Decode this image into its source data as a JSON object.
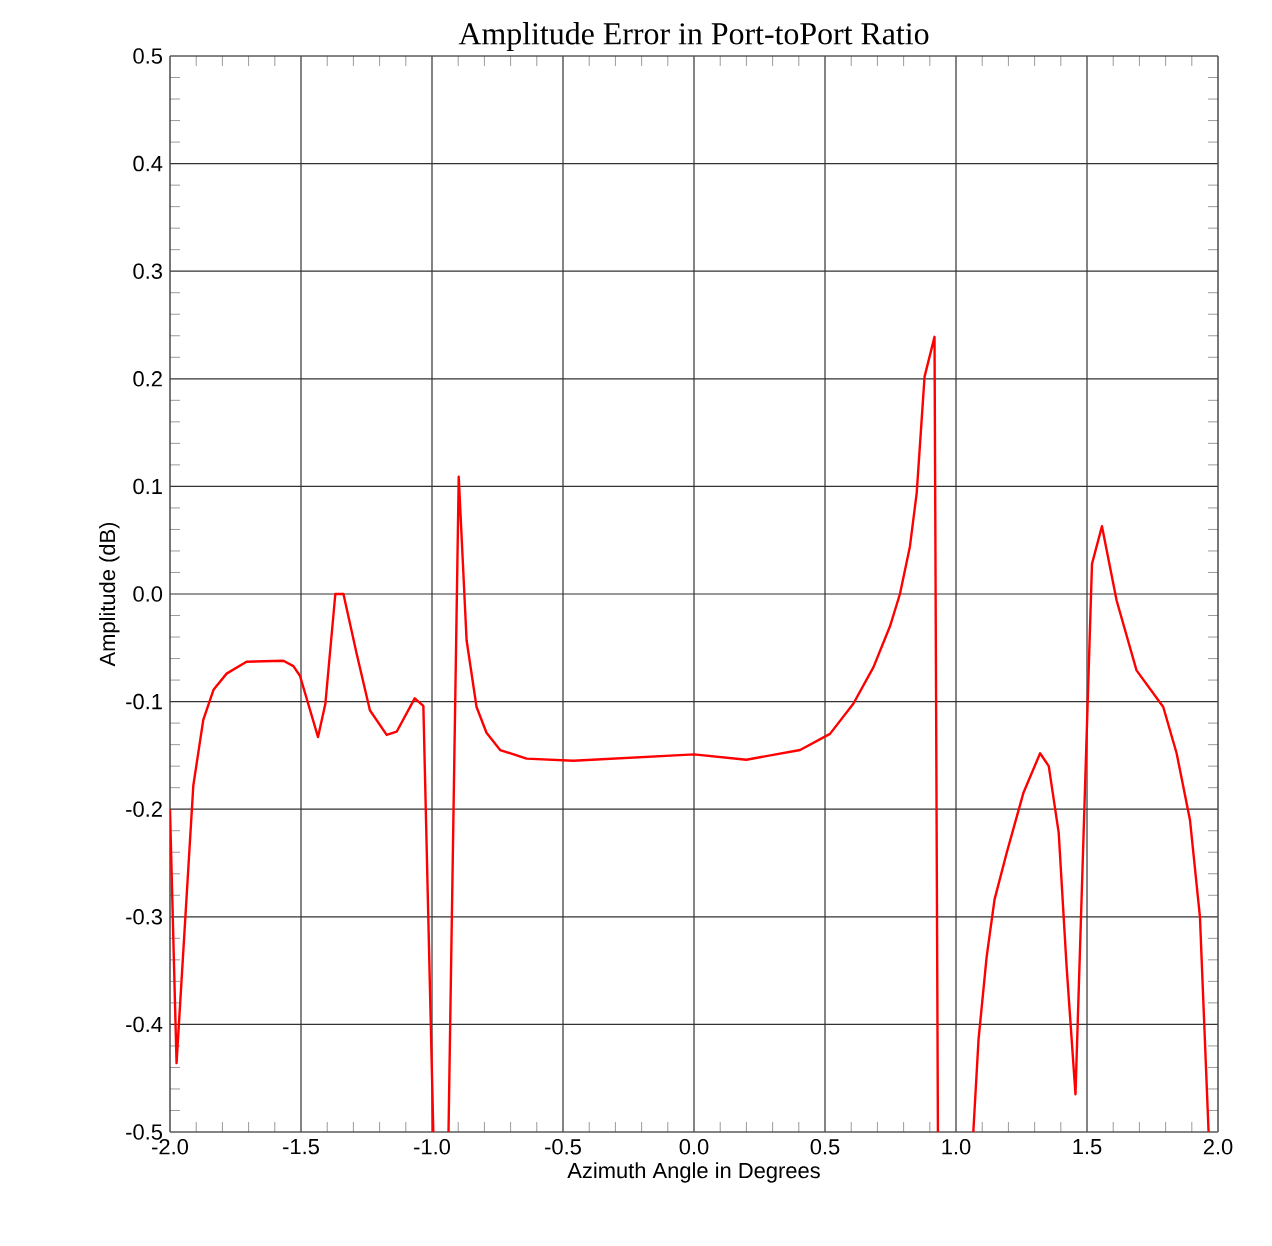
{
  "chart_data": {
    "type": "line",
    "title": "Amplitude Error in Port-toPort Ratio",
    "xlabel": "Azimuth Angle in Degrees",
    "ylabel": "Amplitude (dB)",
    "x": [
      -2.0,
      -1.975,
      -1.911,
      -1.873,
      -1.834,
      -1.784,
      -1.708,
      -1.567,
      -1.529,
      -1.504,
      -1.435,
      -1.407,
      -1.369,
      -1.338,
      -1.288,
      -1.237,
      -1.173,
      -1.135,
      -1.066,
      -1.033,
      -0.995,
      -0.97,
      -0.937,
      -0.898,
      -0.868,
      -0.83,
      -0.792,
      -0.74,
      -0.639,
      -0.461,
      0.0,
      0.2,
      0.405,
      0.519,
      0.608,
      0.685,
      0.748,
      0.786,
      0.824,
      0.85,
      0.88,
      0.918,
      0.931,
      1.0,
      1.066,
      1.086,
      1.117,
      1.147,
      1.193,
      1.257,
      1.321,
      1.354,
      1.392,
      1.422,
      1.456,
      1.519,
      1.557,
      1.613,
      1.689,
      1.791,
      1.842,
      1.893,
      1.931,
      1.964
    ],
    "series": [
      {
        "color": "#ff0000",
        "values": [
          -0.2,
          -0.436,
          -0.178,
          -0.117,
          -0.089,
          -0.074,
          -0.063,
          -0.062,
          -0.067,
          -0.076,
          -0.133,
          -0.102,
          0.0,
          0.0,
          -0.055,
          -0.108,
          -0.131,
          -0.128,
          -0.097,
          -0.104,
          -0.5,
          null,
          -0.5,
          0.109,
          -0.043,
          -0.105,
          -0.129,
          -0.145,
          -0.153,
          -0.155,
          -0.149,
          -0.154,
          -0.145,
          -0.13,
          -0.102,
          -0.068,
          -0.03,
          0.0,
          0.044,
          0.094,
          0.202,
          0.239,
          -0.5,
          null,
          -0.5,
          -0.414,
          -0.337,
          -0.284,
          -0.241,
          -0.185,
          -0.148,
          -0.16,
          -0.222,
          -0.346,
          -0.465,
          0.028,
          0.063,
          -0.006,
          -0.071,
          -0.105,
          -0.148,
          -0.21,
          -0.3,
          -0.5
        ]
      }
    ],
    "xlim": [
      -2.0,
      2.0
    ],
    "ylim": [
      -0.5,
      0.5
    ],
    "xticks": [
      {
        "value": -2.0,
        "label": "-2.0"
      },
      {
        "value": -1.5,
        "label": "-1.5"
      },
      {
        "value": -1.0,
        "label": "-1.0"
      },
      {
        "value": -0.5,
        "label": "-0.5"
      },
      {
        "value": 0.0,
        "label": "0.0"
      },
      {
        "value": 0.5,
        "label": "0.5"
      },
      {
        "value": 1.0,
        "label": "1.0"
      },
      {
        "value": 1.5,
        "label": "1.5"
      },
      {
        "value": 2.0,
        "label": "2.0"
      }
    ],
    "yticks": [
      {
        "value": -0.5,
        "label": "-0.5"
      },
      {
        "value": -0.4,
        "label": "-0.4"
      },
      {
        "value": -0.3,
        "label": "-0.3"
      },
      {
        "value": -0.2,
        "label": "-0.2"
      },
      {
        "value": -0.1,
        "label": "-0.1"
      },
      {
        "value": 0.0,
        "label": "0.0"
      },
      {
        "value": 0.1,
        "label": "0.1"
      },
      {
        "value": 0.2,
        "label": "0.2"
      },
      {
        "value": 0.3,
        "label": "0.3"
      },
      {
        "value": 0.4,
        "label": "0.4"
      },
      {
        "value": 0.5,
        "label": "0.5"
      }
    ],
    "grid": true,
    "marker": "none",
    "line_style": "solid"
  }
}
